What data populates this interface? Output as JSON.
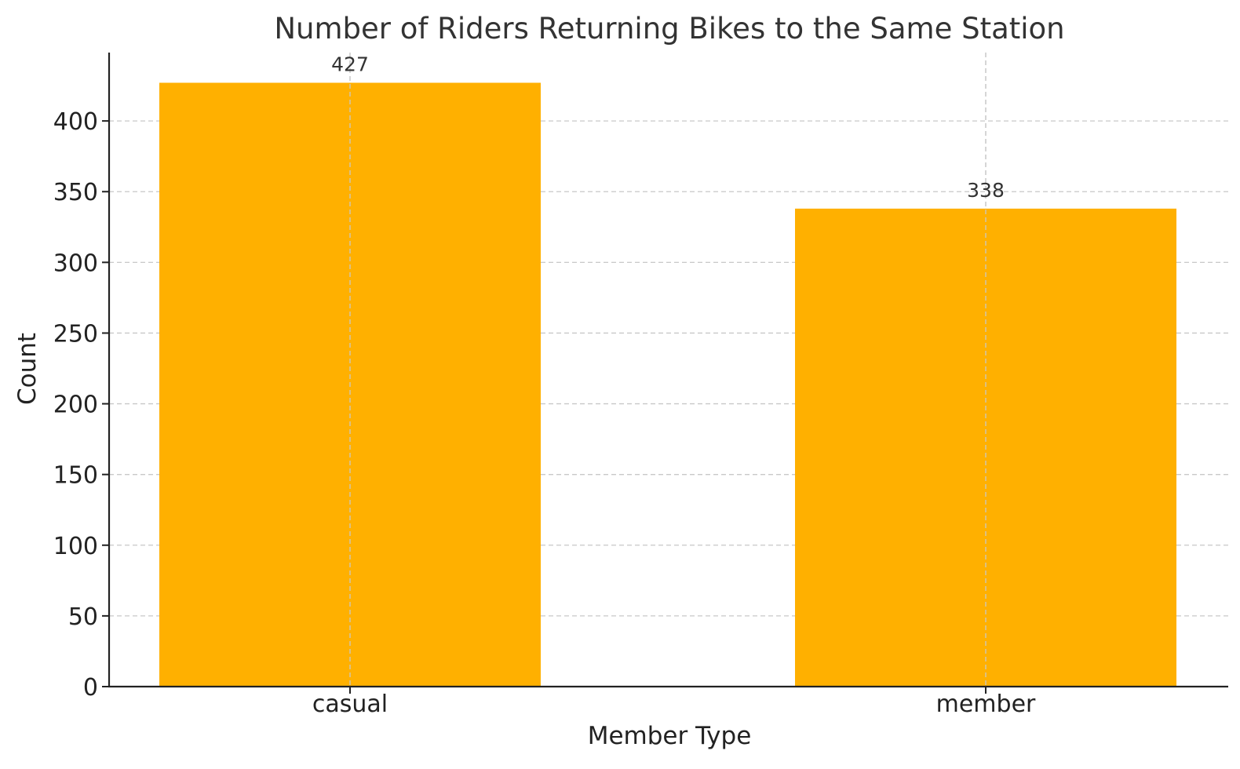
{
  "chart_data": {
    "type": "bar",
    "title": "Number of Riders Returning Bikes to the Same Station",
    "xlabel": "Member Type",
    "ylabel": "Count",
    "categories": [
      "casual",
      "member"
    ],
    "values": [
      427,
      338
    ],
    "data_labels": [
      "427",
      "338"
    ],
    "yticks": [
      0,
      50,
      100,
      150,
      200,
      250,
      300,
      350,
      400
    ],
    "ytick_labels": [
      "0",
      "50",
      "100",
      "150",
      "200",
      "250",
      "300",
      "350",
      "400"
    ],
    "ylim": [
      0,
      448.35
    ],
    "grid": true,
    "bar_color": "#FFB000",
    "grid_color": "#c8c8c8"
  }
}
